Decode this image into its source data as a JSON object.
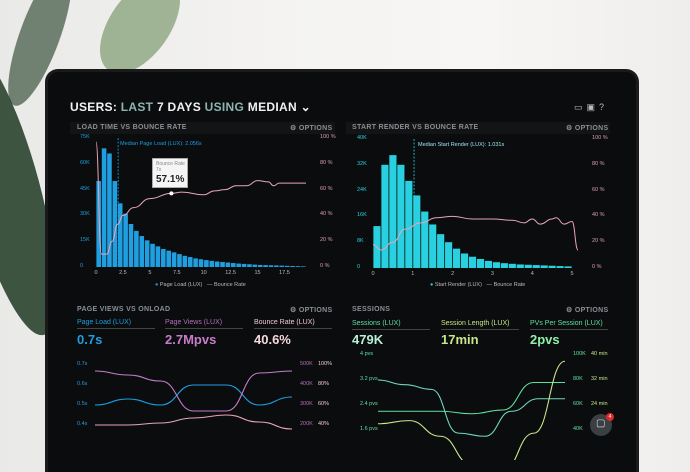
{
  "header": {
    "title_parts": [
      "USERS:",
      "LAST",
      "7 DAYS",
      "USING",
      "MEDIAN"
    ],
    "icons": [
      "monitor-icon",
      "image-icon",
      "help-icon"
    ]
  },
  "options_label": "OPTIONS",
  "chat": {
    "badge": "4"
  },
  "colors": {
    "page_load": "#1f9ee0",
    "bounce": "#e7a6b4",
    "start_render": "#29d0e0",
    "page_views": "#c77dc9",
    "sessions": "#5fe0a0",
    "session_length": "#c8e68a",
    "pvs": "#6fd8c0"
  },
  "chart_data": [
    {
      "type": "bar",
      "title": "LOAD TIME VS BOUNCE RATE",
      "annotation": "Median Page Load (LUX): 2.056s",
      "tooltip": {
        "label": "Bounce Rate",
        "x": "7s",
        "value": "57.1%"
      },
      "x_ticks": [
        "0",
        "2.5",
        "5",
        "7.5",
        "10",
        "12.5",
        "15",
        "17.5"
      ],
      "y_ticks": [
        "0",
        "15K",
        "30K",
        "45K",
        "60K",
        "75K"
      ],
      "y2_ticks": [
        "0 %",
        "20 %",
        "40 %",
        "60 %",
        "80 %",
        "100 %"
      ],
      "ylim": [
        0,
        75000
      ],
      "y2lim": [
        0,
        100
      ],
      "bin_width": 0.5,
      "median": 2.056,
      "series": [
        {
          "name": "Page Load (LUX)",
          "type": "bar",
          "values": [
            50000,
            69000,
            66000,
            50000,
            37000,
            31000,
            25000,
            21000,
            18000,
            15500,
            13500,
            12000,
            10500,
            9500,
            8500,
            7500,
            6500,
            5800,
            5000,
            4500,
            4000,
            3600,
            3200,
            2900,
            2600,
            2300,
            2000,
            1800,
            1600,
            1400,
            1200,
            1100,
            1000,
            900,
            800,
            700,
            600,
            500,
            400
          ]
        },
        {
          "name": "Bounce Rate",
          "type": "line",
          "points": [
            [
              0,
              97
            ],
            [
              0.5,
              10
            ],
            [
              1,
              10
            ],
            [
              1.5,
              20
            ],
            [
              2,
              33
            ],
            [
              2.5,
              40
            ],
            [
              3.5,
              46
            ],
            [
              5,
              53
            ],
            [
              7,
              57.1
            ],
            [
              8,
              58
            ],
            [
              10,
              56
            ],
            [
              11,
              59
            ],
            [
              12,
              60
            ],
            [
              13,
              63
            ],
            [
              14,
              63
            ],
            [
              15,
              67
            ],
            [
              16,
              66
            ],
            [
              16.5,
              63
            ],
            [
              17,
              65
            ],
            [
              18,
              65
            ],
            [
              19.5,
              65
            ]
          ]
        }
      ]
    },
    {
      "type": "bar",
      "title": "START RENDER VS BOUNCE RATE",
      "annotation": "Median Start Render (LUX): 1.031s",
      "x_ticks": [
        "0",
        "1",
        "2",
        "3",
        "4",
        "5"
      ],
      "y_ticks": [
        "0",
        "8K",
        "16K",
        "24K",
        "32K",
        "40K"
      ],
      "y2_ticks": [
        "0 %",
        "20 %",
        "40 %",
        "60 %",
        "80 %",
        "100 %"
      ],
      "ylim": [
        0,
        40000
      ],
      "y2lim": [
        0,
        100
      ],
      "bin_width": 0.2,
      "median": 1.031,
      "series": [
        {
          "name": "Start Render (LUX)",
          "type": "bar",
          "values": [
            13000,
            32000,
            35000,
            32000,
            27000,
            22500,
            17500,
            13500,
            10500,
            8000,
            6000,
            4500,
            3500,
            2800,
            2200,
            1800,
            1500,
            1300,
            1100,
            1000,
            900,
            800,
            700,
            600,
            500
          ]
        },
        {
          "name": "Bounce Rate",
          "type": "line",
          "points": [
            [
              0,
              18
            ],
            [
              0.2,
              14
            ],
            [
              0.5,
              20
            ],
            [
              0.8,
              30
            ],
            [
              1.2,
              35
            ],
            [
              1.6,
              39
            ],
            [
              2,
              40
            ],
            [
              2.5,
              38
            ],
            [
              3,
              38
            ],
            [
              3.5,
              37
            ],
            [
              3.8,
              35
            ],
            [
              4,
              38
            ],
            [
              4.2,
              34
            ],
            [
              4.5,
              38
            ],
            [
              4.6,
              39
            ],
            [
              4.8,
              34
            ],
            [
              5,
              36
            ],
            [
              5.15,
              14
            ]
          ]
        }
      ]
    },
    {
      "type": "line",
      "title": "PAGE VIEWS VS ONLOAD",
      "metrics": [
        {
          "label": "Page Load (LUX)",
          "value": "0.7s"
        },
        {
          "label": "Page Views (LUX)",
          "value": "2.7Mpvs"
        },
        {
          "label": "Bounce Rate (LUX)",
          "value": "40.6%"
        }
      ],
      "y_ticks": [
        "0.4s",
        "0.5s",
        "0.6s",
        "0.7s"
      ],
      "y2_ticks": [
        "200K",
        "300K",
        "400K",
        "500K"
      ],
      "y3_ticks": [
        "40%",
        "60%",
        "80%",
        "100%"
      ],
      "series": [
        {
          "name": "Page Load (LUX)",
          "axis": [
            0.4,
            0.7
          ],
          "values": [
            0.5,
            0.53,
            0.5,
            0.6,
            0.6,
            0.5,
            0.54
          ]
        },
        {
          "name": "Page Views (LUX)",
          "axis": [
            200000,
            500000
          ],
          "values": [
            470000,
            450000,
            420000,
            270000,
            270000,
            460000,
            470000
          ]
        },
        {
          "name": "Bounce Rate (LUX)",
          "axis": [
            40,
            100
          ],
          "values": [
            40,
            40,
            42,
            47,
            50,
            43,
            36
          ]
        }
      ]
    },
    {
      "type": "line",
      "title": "SESSIONS",
      "metrics": [
        {
          "label": "Sessions (LUX)",
          "value": "479K"
        },
        {
          "label": "Session Length (LUX)",
          "value": "17min"
        },
        {
          "label": "PVs Per Session (LUX)",
          "value": "2pvs"
        }
      ],
      "y_ticks": [
        "1.6 pvs",
        "2.4 pvs",
        "3.2 pvs",
        "4 pvs"
      ],
      "y2_ticks": [
        "40K",
        "60K",
        "80K",
        "100K"
      ],
      "y3_ticks": [
        "24 min",
        "32 min",
        "40 min"
      ],
      "series": [
        {
          "name": "PVs Per Session (LUX)",
          "axis": [
            1.6,
            4
          ],
          "values": [
            3.2,
            3.05,
            2.9,
            1.5,
            1.4,
            2.2,
            2.6,
            2.6
          ]
        },
        {
          "name": "Sessions (LUX)",
          "axis": [
            40000,
            100000
          ],
          "values": [
            55000,
            55000,
            55000,
            53000,
            56000,
            78000,
            78000
          ]
        },
        {
          "name": "Session Length (LUX)",
          "axis": [
            16,
            40
          ],
          "values": [
            18,
            19,
            14,
            5,
            3,
            15,
            38
          ]
        }
      ]
    }
  ]
}
